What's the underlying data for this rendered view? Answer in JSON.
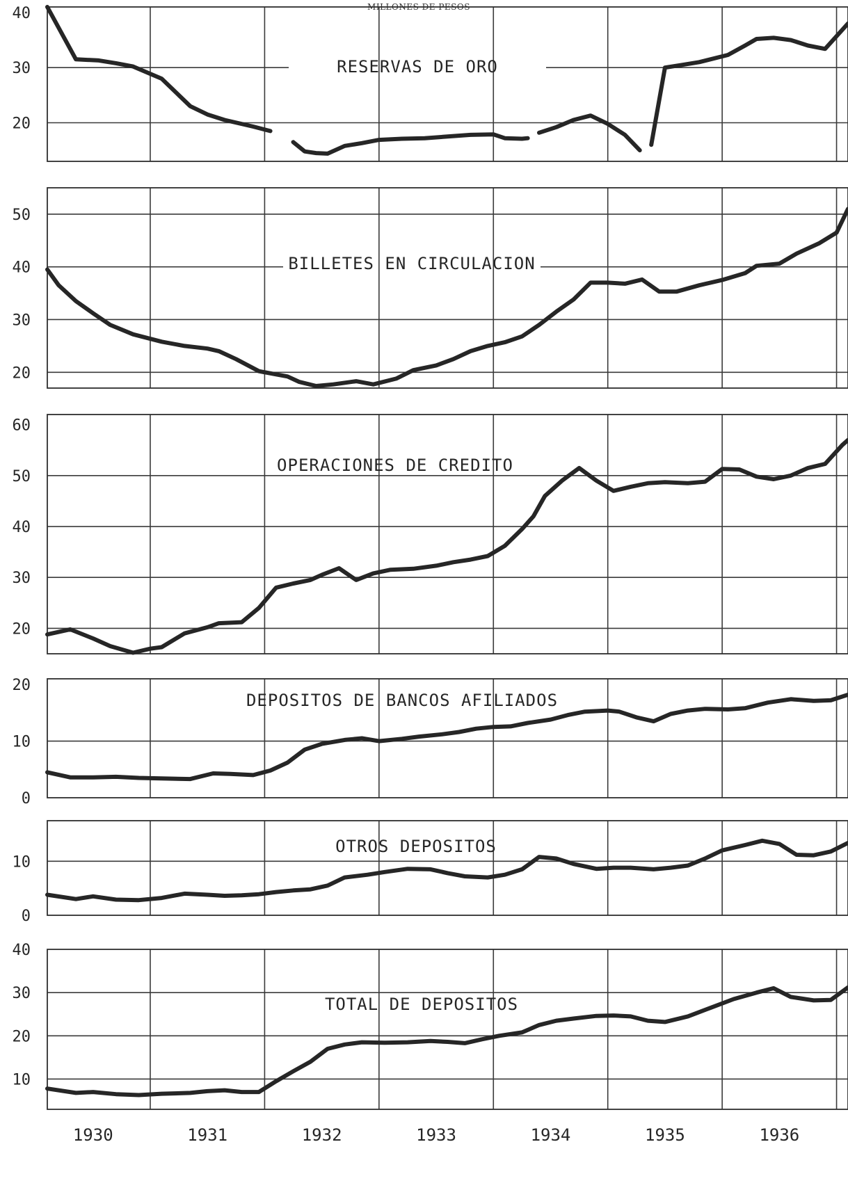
{
  "header": {
    "unit_label": "MILLONES DE PESOS"
  },
  "colors": {
    "line": "#262626",
    "grid": "#3a3a3a",
    "background": "#ffffff"
  },
  "chart_data": {
    "type": "line",
    "x_tick_labels": [
      "1930",
      "1931",
      "1932",
      "1933",
      "1934",
      "1935",
      "1936"
    ],
    "x_range": [
      1929.6,
      1936.6
    ],
    "panels": [
      {
        "title": "RESERVAS DE ORO",
        "ylim": [
          13,
          41
        ],
        "yticks": [
          20,
          30,
          40
        ],
        "gridlines": [
          20,
          30
        ],
        "segments": [
          {
            "x": [
              1929.6,
              1929.85,
              1930.05,
              1930.2,
              1930.35,
              1930.6,
              1930.85,
              1931.0,
              1931.15,
              1931.4,
              1931.55
            ],
            "y": [
              41,
              31.5,
              31.3,
              30.8,
              30.2,
              28,
              23,
              21.5,
              20.5,
              19.3,
              18.5
            ]
          },
          {
            "x": [
              1931.75,
              1931.85,
              1931.95,
              1932.05,
              1932.2,
              1932.35,
              1932.5,
              1932.7,
              1932.9,
              1933.1,
              1933.3,
              1933.5,
              1933.6,
              1933.75,
              1933.8
            ],
            "y": [
              16.5,
              14.8,
              14.5,
              14.4,
              15.8,
              16.3,
              16.9,
              17.1,
              17.2,
              17.5,
              17.8,
              17.9,
              17.2,
              17.1,
              17.2
            ]
          },
          {
            "x": [
              1933.9,
              1934.05,
              1934.2,
              1934.35,
              1934.5,
              1934.65,
              1934.78
            ],
            "y": [
              18.2,
              19.2,
              20.5,
              21.3,
              19.8,
              17.8,
              15
            ]
          },
          {
            "x": [
              1934.88,
              1935.0,
              1935.15,
              1935.3,
              1935.55,
              1935.7,
              1935.8,
              1935.95,
              1936.1,
              1936.25,
              1936.4,
              1936.6
            ],
            "y": [
              16,
              30,
              30.5,
              31,
              32.3,
              34,
              35.2,
              35.4,
              35,
              34,
              33.4,
              38
            ]
          }
        ]
      },
      {
        "title": "BILLETES EN CIRCULACION",
        "ylim": [
          17,
          55
        ],
        "yticks": [
          20,
          30,
          40,
          50
        ],
        "gridlines": [
          20,
          30,
          40,
          50
        ],
        "segments": [
          {
            "x": [
              1929.6,
              1929.7,
              1929.85,
              1930.0,
              1930.15,
              1930.35,
              1930.6,
              1930.8,
              1931.0,
              1931.1,
              1931.25,
              1931.45,
              1931.6,
              1931.7,
              1931.8,
              1931.95,
              1932.1,
              1932.3,
              1932.45,
              1932.65,
              1932.8,
              1933.0,
              1933.15,
              1933.3,
              1933.45,
              1933.6,
              1933.75,
              1933.9,
              1934.05,
              1934.2,
              1934.35,
              1934.5,
              1934.65,
              1934.8,
              1934.95,
              1935.1,
              1935.3,
              1935.5,
              1935.7,
              1935.8,
              1936.0,
              1936.15,
              1936.35,
              1936.5,
              1936.6
            ],
            "y": [
              39.5,
              36.5,
              33.5,
              31.2,
              29,
              27.2,
              25.8,
              25,
              24.5,
              24,
              22.5,
              20.2,
              19.6,
              19.2,
              18.2,
              17.4,
              17.7,
              18.3,
              17.7,
              18.8,
              20.4,
              21.3,
              22.5,
              24,
              25,
              25.7,
              26.8,
              29,
              31.5,
              33.8,
              37,
              37,
              36.8,
              37.6,
              35.3,
              35.3,
              36.5,
              37.5,
              38.8,
              40.2,
              40.6,
              42.5,
              44.5,
              46.5,
              51
            ]
          }
        ]
      },
      {
        "title": "OPERACIONES DE CREDITO",
        "ylim": [
          15,
          62
        ],
        "yticks": [
          20,
          30,
          40,
          50,
          60
        ],
        "gridlines": [
          20,
          30,
          40,
          50
        ],
        "segments": [
          {
            "x": [
              1929.6,
              1929.8,
              1930.0,
              1930.15,
              1930.35,
              1930.5,
              1930.6,
              1930.8,
              1931.0,
              1931.1,
              1931.3,
              1931.45,
              1931.6,
              1931.75,
              1931.9,
              1932.0,
              1932.15,
              1932.3,
              1932.45,
              1932.6,
              1932.8,
              1933.0,
              1933.15,
              1933.3,
              1933.45,
              1933.6,
              1933.75,
              1933.85,
              1933.95,
              1934.1,
              1934.25,
              1934.4,
              1934.55,
              1934.7,
              1934.85,
              1935.0,
              1935.2,
              1935.35,
              1935.5,
              1935.65,
              1935.8,
              1935.95,
              1936.1,
              1936.25,
              1936.4,
              1936.55,
              1936.6
            ],
            "y": [
              18.8,
              19.8,
              18,
              16.5,
              15.2,
              16,
              16.3,
              19,
              20.2,
              21,
              21.2,
              24,
              28,
              28.8,
              29.5,
              30.5,
              31.8,
              29.5,
              30.8,
              31.5,
              31.7,
              32.3,
              33,
              33.5,
              34.2,
              36.2,
              39.5,
              42,
              46,
              49,
              51.5,
              49,
              47,
              47.8,
              48.5,
              48.7,
              48.5,
              48.8,
              51.3,
              51.2,
              49.8,
              49.3,
              50,
              51.5,
              52.3,
              56,
              57
            ]
          }
        ]
      },
      {
        "title": "DEPOSITOS DE BANCOS AFILIADOS",
        "ylim": [
          0,
          21
        ],
        "yticks": [
          0,
          10,
          20
        ],
        "gridlines": [
          10
        ],
        "segments": [
          {
            "x": [
              1929.6,
              1929.8,
              1930.0,
              1930.2,
              1930.4,
              1930.6,
              1930.85,
              1931.05,
              1931.2,
              1931.4,
              1931.55,
              1931.7,
              1931.85,
              1932.0,
              1932.2,
              1932.35,
              1932.5,
              1932.7,
              1932.85,
              1933.05,
              1933.2,
              1933.35,
              1933.5,
              1933.65,
              1933.8,
              1934.0,
              1934.15,
              1934.3,
              1934.5,
              1934.6,
              1934.75,
              1934.9,
              1935.05,
              1935.2,
              1935.35,
              1935.55,
              1935.7,
              1935.9,
              1936.1,
              1936.3,
              1936.45,
              1936.6
            ],
            "y": [
              4.5,
              3.6,
              3.6,
              3.7,
              3.5,
              3.4,
              3.3,
              4.3,
              4.2,
              4,
              4.8,
              6.2,
              8.5,
              9.5,
              10.2,
              10.5,
              10,
              10.4,
              10.8,
              11.2,
              11.6,
              12.2,
              12.5,
              12.6,
              13.2,
              13.8,
              14.6,
              15.2,
              15.4,
              15.2,
              14.2,
              13.5,
              14.8,
              15.4,
              15.7,
              15.6,
              15.8,
              16.8,
              17.4,
              17.1,
              17.2,
              18.2
            ]
          }
        ]
      },
      {
        "title": "OTROS DEPOSITOS",
        "ylim": [
          0,
          17.5
        ],
        "yticks": [
          0,
          10
        ],
        "gridlines": [
          10
        ],
        "segments": [
          {
            "x": [
              1929.6,
              1929.85,
              1930.0,
              1930.2,
              1930.4,
              1930.6,
              1930.8,
              1931.0,
              1931.15,
              1931.3,
              1931.45,
              1931.6,
              1931.75,
              1931.9,
              1932.05,
              1932.2,
              1932.4,
              1932.55,
              1932.75,
              1932.95,
              1933.1,
              1933.25,
              1933.45,
              1933.6,
              1933.75,
              1933.9,
              1934.05,
              1934.2,
              1934.4,
              1934.55,
              1934.7,
              1934.9,
              1935.05,
              1935.2,
              1935.35,
              1935.5,
              1935.7,
              1935.85,
              1936.0,
              1936.15,
              1936.3,
              1936.45,
              1936.6
            ],
            "y": [
              3.8,
              3,
              3.5,
              2.9,
              2.8,
              3.2,
              4,
              3.8,
              3.6,
              3.7,
              3.9,
              4.3,
              4.6,
              4.8,
              5.5,
              7,
              7.5,
              8,
              8.6,
              8.5,
              7.8,
              7.2,
              7,
              7.5,
              8.5,
              10.8,
              10.5,
              9.5,
              8.6,
              8.8,
              8.8,
              8.5,
              8.8,
              9.2,
              10.5,
              12,
              13,
              13.8,
              13.2,
              11.2,
              11.1,
              11.8,
              13.4
            ]
          }
        ]
      },
      {
        "title": "TOTAL DE DEPOSITOS",
        "ylim": [
          3,
          40
        ],
        "yticks": [
          10,
          20,
          30,
          40
        ],
        "gridlines": [
          10,
          20,
          30
        ],
        "segments": [
          {
            "x": [
              1929.6,
              1929.85,
              1930.0,
              1930.2,
              1930.4,
              1930.6,
              1930.85,
              1931.0,
              1931.15,
              1931.3,
              1931.45,
              1931.6,
              1931.75,
              1931.9,
              1932.05,
              1932.2,
              1932.35,
              1932.55,
              1932.75,
              1932.95,
              1933.1,
              1933.25,
              1933.4,
              1933.55,
              1933.75,
              1933.9,
              1934.05,
              1934.2,
              1934.4,
              1934.55,
              1934.7,
              1934.85,
              1935.0,
              1935.2,
              1935.4,
              1935.6,
              1935.8,
              1935.95,
              1936.1,
              1936.3,
              1936.45,
              1936.6
            ],
            "y": [
              7.8,
              6.8,
              7,
              6.5,
              6.3,
              6.6,
              6.8,
              7.2,
              7.4,
              7,
              7,
              9.5,
              11.8,
              14,
              17,
              18,
              18.5,
              18.4,
              18.5,
              18.8,
              18.6,
              18.3,
              19.2,
              20,
              20.8,
              22.5,
              23.5,
              24,
              24.6,
              24.7,
              24.5,
              23.5,
              23.2,
              24.5,
              26.5,
              28.5,
              30,
              31,
              29,
              28.2,
              28.3,
              31.2
            ]
          }
        ]
      }
    ]
  }
}
